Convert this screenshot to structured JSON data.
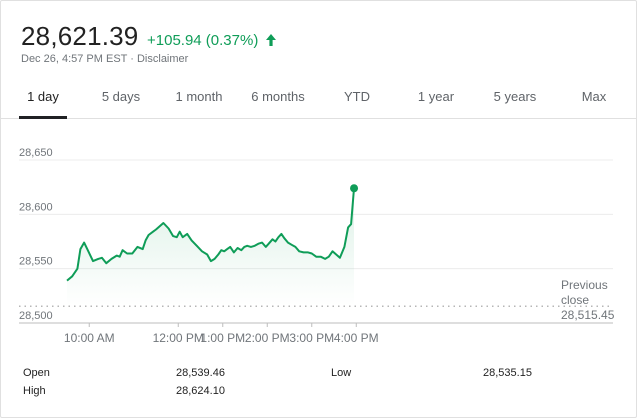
{
  "header": {
    "price": "28,621.39",
    "change": "+105.94 (0.37%)",
    "arrow_icon": "arrow-up-icon",
    "timestamp": "Dec 26, 4:57 PM EST",
    "separator": "·",
    "disclaimer": "Disclaimer",
    "up_color": "#0f9d58"
  },
  "tabs": [
    "1 day",
    "5 days",
    "1 month",
    "6 months",
    "YTD",
    "1 year",
    "5 years",
    "Max"
  ],
  "chart_data": {
    "type": "area",
    "y_ticks": [
      "28,650",
      "28,600",
      "28,550",
      "28,500"
    ],
    "ylim": [
      28500,
      28650
    ],
    "x_ticks": [
      "10:00 AM",
      "12:00 PM",
      "1:00 PM",
      "2:00 PM",
      "3:00 PM",
      "4:00 PM"
    ],
    "grid": true,
    "line_color": "#0f9d58",
    "series": [
      {
        "x": [
          "09:30",
          "09:37",
          "09:44",
          "09:48",
          "09:53",
          "09:58",
          "10:05",
          "10:12",
          "10:17",
          "10:23",
          "10:30",
          "10:37",
          "10:41",
          "10:45",
          "10:51",
          "10:58",
          "11:05",
          "11:12",
          "11:16",
          "11:20",
          "11:26",
          "11:30",
          "11:35",
          "11:40",
          "11:47",
          "11:53",
          "11:58",
          "12:02",
          "12:06",
          "12:12",
          "12:18",
          "12:25",
          "12:32",
          "12:39",
          "12:44",
          "12:49",
          "12:54",
          "12:58",
          "13:02",
          "13:06",
          "13:10",
          "13:15",
          "13:20",
          "13:25",
          "13:29",
          "13:33",
          "13:38",
          "13:43",
          "13:48",
          "13:53",
          "13:58",
          "14:02",
          "14:07",
          "14:11",
          "14:15",
          "14:19",
          "14:23",
          "14:28",
          "14:33",
          "14:38",
          "14:43",
          "14:49",
          "14:55",
          "15:00",
          "15:06",
          "15:12",
          "15:18",
          "15:23",
          "15:28",
          "15:33",
          "15:38",
          "15:44",
          "15:49",
          "15:53",
          "15:57"
        ],
        "values": [
          28539,
          28543,
          28550,
          28568,
          28574,
          28567,
          28557,
          28559,
          28560,
          28555,
          28559,
          28562,
          28561,
          28567,
          28564,
          28564,
          28570,
          28568,
          28576,
          28581,
          28584,
          28586,
          28589,
          28592,
          28587,
          28580,
          28579,
          28584,
          28579,
          28582,
          28576,
          28571,
          28566,
          28563,
          28557,
          28559,
          28563,
          28567,
          28566,
          28568,
          28570,
          28565,
          28569,
          28567,
          28570,
          28571,
          28570,
          28571,
          28573,
          28574,
          28570,
          28573,
          28577,
          28575,
          28579,
          28582,
          28578,
          28574,
          28572,
          28570,
          28566,
          28565,
          28565,
          28564,
          28561,
          28561,
          28559,
          28561,
          28566,
          28563,
          28560,
          28570,
          28588,
          28591,
          28624
        ]
      }
    ],
    "reference_line": {
      "label": "Previous close",
      "value": "28,515.45",
      "y": 28515.45
    }
  },
  "stats": {
    "open_label": "Open",
    "open_value": "28,539.46",
    "high_label": "High",
    "high_value": "28,624.10",
    "low_label": "Low",
    "low_value": "28,535.15"
  }
}
